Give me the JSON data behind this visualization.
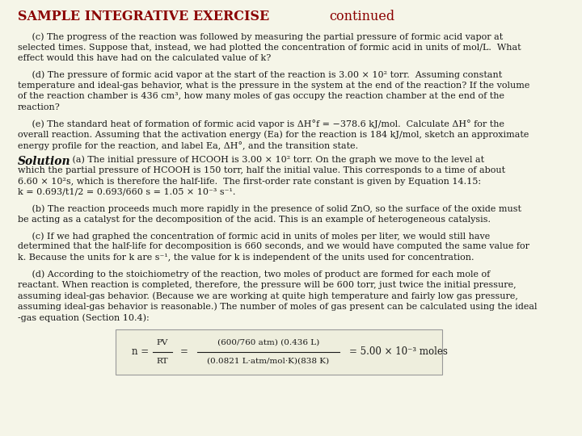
{
  "bg_color": "#f5f5e8",
  "title_bold": "SAMPLE INTEGRATIVE EXERCISE",
  "title_normal": "continued",
  "title_color": "#8b0000",
  "title_fontsize": 11.5,
  "body_fontsize": 8.0,
  "body_color": "#1a1a1a",
  "lines_questions": [
    "     (c) The progress of the reaction was followed by measuring the partial pressure of formic acid vapor at",
    "selected times. Suppose that, instead, we had plotted the concentration of formic acid in units of mol/L.  What",
    "effect would this have had on the calculated value of k?",
    "",
    "     (d) The pressure of formic acid vapor at the start of the reaction is 3.00 × 10² torr.  Assuming constant",
    "temperature and ideal-gas behavior, what is the pressure in the system at the end of the reaction? If the volume",
    "of the reaction chamber is 436 cm³, how many moles of gas occupy the reaction chamber at the end of the",
    "reaction?",
    "",
    "     (e) The standard heat of formation of formic acid vapor is ΔH°f = −378.6 kJ/mol.  Calculate ΔH° for the",
    "overall reaction. Assuming that the activation energy (Ea) for the reaction is 184 kJ/mol, sketch an approximate",
    "energy profile for the reaction, and label Ea, ΔH°, and the transition state."
  ],
  "sol_a": " (a) The initial pressure of HCOOH is 3.00 × 10² torr. On the graph we move to the level at",
  "lines_solution": [
    "which the partial pressure of HCOOH is 150 torr, half the initial value. This corresponds to a time of about",
    "6.60 × 10²s, which is therefore the half-life.  The first-order rate constant is given by Equation 14.15:",
    "k = 0.693/t1/2 = 0.693/660 s = 1.05 × 10⁻³ s⁻¹.",
    "",
    "     (b) The reaction proceeds much more rapidly in the presence of solid ZnO, so the surface of the oxide must",
    "be acting as a catalyst for the decomposition of the acid. This is an example of heterogeneous catalysis.",
    "",
    "     (c) If we had graphed the concentration of formic acid in units of moles per liter, we would still have",
    "determined that the half-life for decomposition is 660 seconds, and we would have computed the same value for",
    "k. Because the units for k are s⁻¹, the value for k is independent of the units used for concentration.",
    "",
    "     (d) According to the stoichiometry of the reaction, two moles of product are formed for each mole of",
    "reactant. When reaction is completed, therefore, the pressure will be 600 torr, just twice the initial pressure,",
    "assuming ideal-gas behavior. (Because we are working at quite high temperature and fairly low gas pressure,",
    "assuming ideal-gas behavior is reasonable.) The number of moles of gas present can be calculated using the ideal",
    "-gas equation (Section 10.4):"
  ],
  "eq_numer": "(600/760 atm) (0.436 L)",
  "eq_denom": "(0.0821 L·atm/mol·K)(838 K)",
  "eq_result": "= 5.00 × 10⁻³ moles",
  "eq_prefix": "n = ",
  "eq_frac_pv": "PV",
  "eq_frac_rt": "RT",
  "eq_equals": "="
}
